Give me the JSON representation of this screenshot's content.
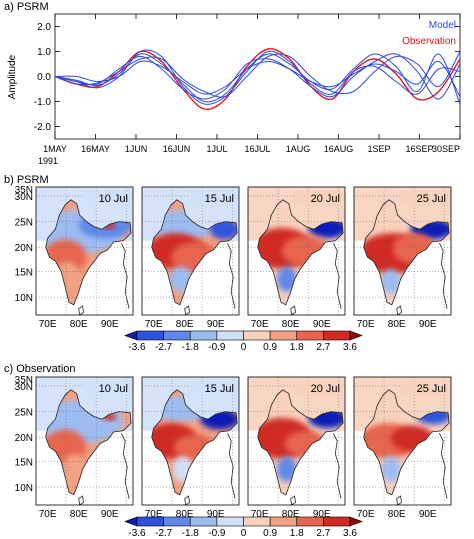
{
  "panel_a": {
    "label": "a) PSRM",
    "ylabel": "Amplitude",
    "legend": {
      "model": "Model",
      "observation": "Observation"
    },
    "colors": {
      "model": "#2d49e0",
      "observation": "#e8141a"
    },
    "year_label": "1991"
  },
  "panel_b": {
    "label": "b) PSRM"
  },
  "panel_c": {
    "label": "c) Observation"
  },
  "map_dates": [
    "10 Jul",
    "15 Jul",
    "20 Jul",
    "25 Jul"
  ],
  "lat_labels": [
    "35N",
    "30N",
    "25N",
    "20N",
    "15N",
    "10N"
  ],
  "lon_labels": [
    "70E",
    "80E",
    "90E"
  ],
  "colorbar": {
    "ticks": [
      "-3.6",
      "-2.7",
      "-1.8",
      "-0.9",
      "0",
      "0.9",
      "1.8",
      "2.7",
      "3.6"
    ],
    "colors": [
      "#0a1fb8",
      "#2d52dc",
      "#5f88ea",
      "#9cbcf2",
      "#cfe0f8",
      "#f8d2bd",
      "#f3a183",
      "#e8654d",
      "#d02c21",
      "#8f0a0a"
    ]
  },
  "chart_data": [
    {
      "type": "line",
      "title": "a) PSRM",
      "xlabel": "",
      "ylabel": "Amplitude",
      "x_ticks": [
        "1MAY",
        "16MAY",
        "1JUN",
        "16JUN",
        "1JUL",
        "16JUL",
        "1AUG",
        "16AUG",
        "1SEP",
        "16SEP",
        "30SEP"
      ],
      "x_range_days": [
        0,
        152
      ],
      "y_ticks": [
        -2.0,
        -1.0,
        0.0,
        1.0,
        2.0
      ],
      "ylim": [
        -2.5,
        2.5
      ],
      "grid": false,
      "legend_position": "top-right",
      "series": [
        {
          "name": "Observation",
          "color": "#e8141a",
          "x": [
            0,
            8,
            16,
            24,
            32,
            40,
            48,
            56,
            64,
            72,
            80,
            88,
            96,
            104,
            112,
            120,
            128,
            136,
            144,
            152
          ],
          "y": [
            0.0,
            -0.3,
            -0.4,
            0.2,
            1.0,
            0.6,
            -0.5,
            -1.3,
            -0.9,
            0.4,
            1.1,
            0.7,
            -0.4,
            -0.9,
            0.2,
            0.7,
            0.1,
            -0.9,
            -0.6,
            0.7
          ]
        },
        {
          "name": "Model",
          "color": "#2d49e0",
          "x": [
            0,
            8,
            16,
            24,
            32,
            40,
            48,
            56,
            64,
            72,
            80,
            88,
            96,
            104,
            112,
            120,
            128,
            136,
            144,
            152
          ],
          "y": [
            0.0,
            -0.15,
            -0.35,
            0.1,
            0.9,
            0.5,
            -0.3,
            -1.0,
            -0.7,
            0.3,
            0.9,
            0.5,
            -0.2,
            -0.5,
            0.3,
            0.9,
            0.4,
            -0.6,
            0.9,
            -1.1
          ]
        },
        {
          "name": "Model",
          "color": "#2d49e0",
          "x": [
            0,
            8,
            16,
            24,
            32,
            40,
            48,
            56,
            64,
            72,
            80,
            88,
            96,
            104,
            112,
            120,
            128,
            136,
            144,
            152
          ],
          "y": [
            0.0,
            -0.2,
            -0.3,
            0.3,
            0.8,
            0.3,
            -0.5,
            -0.9,
            -0.5,
            0.5,
            0.7,
            0.3,
            -0.4,
            -0.8,
            0.0,
            0.6,
            0.9,
            0.2,
            -0.9,
            0.5
          ]
        },
        {
          "name": "Model",
          "color": "#2d49e0",
          "x": [
            0,
            8,
            16,
            24,
            32,
            40,
            48,
            56,
            64,
            72,
            80,
            88,
            96,
            104,
            112,
            120,
            128,
            136,
            144,
            152
          ],
          "y": [
            0.0,
            -0.3,
            -0.25,
            0.2,
            0.7,
            0.7,
            -0.1,
            -0.6,
            -0.8,
            0.0,
            0.8,
            0.8,
            0.0,
            -0.6,
            -0.6,
            0.2,
            0.8,
            0.5,
            -0.4,
            1.0
          ]
        },
        {
          "name": "Model",
          "color": "#2d49e0",
          "x": [
            0,
            8,
            16,
            24,
            32,
            40,
            48,
            56,
            64,
            72,
            80,
            88,
            96,
            104,
            112,
            120,
            128,
            136,
            144,
            152
          ],
          "y": [
            0.0,
            0.0,
            -0.2,
            0.0,
            0.6,
            0.4,
            -0.2,
            -0.7,
            -0.4,
            0.3,
            0.6,
            0.3,
            -0.2,
            -0.4,
            0.1,
            0.5,
            0.2,
            -0.3,
            0.6,
            -0.8
          ]
        },
        {
          "name": "Model",
          "color": "#2d49e0",
          "x": [
            0,
            8,
            16,
            24,
            32,
            40,
            48,
            56,
            64,
            72,
            80,
            88,
            96,
            104,
            112,
            120,
            128,
            136,
            144,
            152
          ],
          "y": [
            0.0,
            -0.2,
            -0.45,
            0.0,
            1.0,
            0.8,
            -0.4,
            -1.1,
            -0.8,
            0.2,
            1.0,
            0.6,
            -0.3,
            -0.7,
            0.2,
            0.4,
            -0.2,
            -0.7,
            0.3,
            0.2
          ]
        }
      ]
    },
    {
      "type": "heatmap",
      "title": "b) PSRM",
      "panels": [
        "10 Jul",
        "15 Jul",
        "20 Jul",
        "25 Jul"
      ],
      "lon_range": [
        65,
        100
      ],
      "lat_range": [
        5,
        37
      ],
      "levels": [
        -3.6,
        -2.7,
        -1.8,
        -0.9,
        0,
        0.9,
        1.8,
        2.7,
        3.6
      ]
    },
    {
      "type": "heatmap",
      "title": "c) Observation",
      "panels": [
        "10 Jul",
        "15 Jul",
        "20 Jul",
        "25 Jul"
      ],
      "lon_range": [
        65,
        100
      ],
      "lat_range": [
        5,
        37
      ],
      "levels": [
        -3.6,
        -2.7,
        -1.8,
        -0.9,
        0,
        0.9,
        1.8,
        2.7,
        3.6
      ]
    }
  ]
}
